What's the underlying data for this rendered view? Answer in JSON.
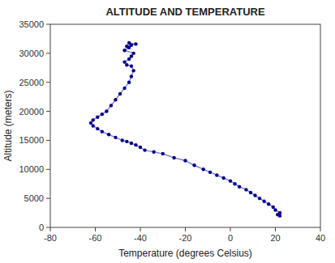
{
  "chart_data": {
    "type": "line",
    "title": "ALTITUDE AND TEMPERATURE",
    "xlabel": "Temperature (degrees Celsius)",
    "ylabel": "Altitude (meters)",
    "x": [
      22,
      21,
      22,
      20,
      19,
      17,
      15,
      13,
      11,
      9,
      7,
      4,
      2,
      0,
      -3,
      -6,
      -9,
      -12,
      -16,
      -20,
      -25,
      -30,
      -34,
      -38,
      -40,
      -42,
      -44,
      -46,
      -48,
      -51,
      -54,
      -57,
      -59,
      -61,
      -62,
      -61,
      -59,
      -57,
      -55,
      -53,
      -51,
      -49,
      -47,
      -45,
      -44,
      -43,
      -44,
      -46,
      -47,
      -45,
      -44,
      -43,
      -47,
      -45,
      -46,
      -44,
      -42,
      -45
    ],
    "values": [
      2000,
      2200,
      2500,
      3000,
      3500,
      4000,
      4500,
      5000,
      5500,
      6000,
      6500,
      7000,
      7500,
      8000,
      8500,
      9000,
      9500,
      10000,
      10700,
      11500,
      12000,
      12700,
      13000,
      13300,
      13800,
      14200,
      14500,
      14800,
      15000,
      15500,
      16000,
      16500,
      17000,
      17500,
      18000,
      18500,
      19000,
      19500,
      20000,
      21000,
      22000,
      23000,
      24000,
      25000,
      26000,
      27000,
      27800,
      28000,
      28500,
      29000,
      29500,
      30000,
      30500,
      31000,
      31200,
      31400,
      31600,
      31800
    ],
    "xlim": [
      -80,
      40
    ],
    "ylim": [
      0,
      35000
    ],
    "xticks": [
      -80,
      -60,
      -40,
      -20,
      0,
      20,
      40
    ],
    "yticks": [
      0,
      5000,
      10000,
      15000,
      20000,
      25000,
      30000,
      35000
    ],
    "color": "#8888cc",
    "marker": "dot",
    "grid": false
  }
}
